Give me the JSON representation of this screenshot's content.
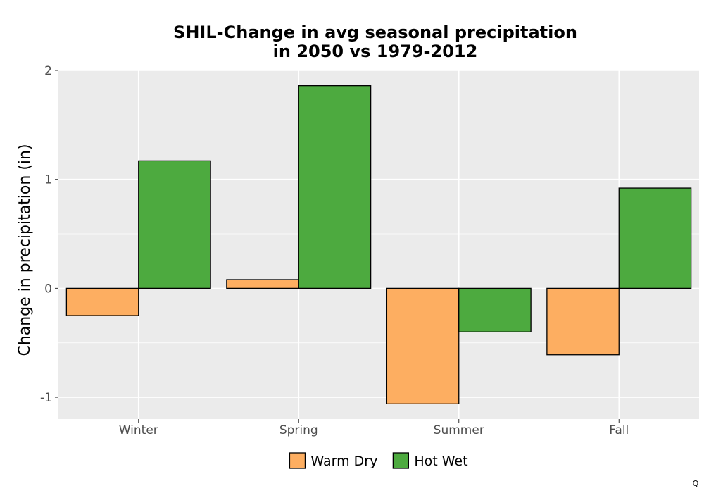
{
  "chart_data": {
    "type": "bar",
    "title_lines": [
      "SHIL-Change in avg seasonal precipitation",
      "in 2050 vs 1979-2012"
    ],
    "xlabel": "",
    "ylabel": "Change in precipitation (in)",
    "categories": [
      "Winter",
      "Spring",
      "Summer",
      "Fall"
    ],
    "series": [
      {
        "name": "Warm Dry",
        "color": "#fdae61",
        "values": [
          -0.25,
          0.08,
          -1.06,
          -0.61
        ]
      },
      {
        "name": "Hot Wet",
        "color": "#4daa3f",
        "values": [
          1.17,
          1.86,
          -0.4,
          0.92
        ]
      }
    ],
    "ylim": [
      -1.2,
      2.0
    ],
    "yticks": [
      -1,
      0,
      1,
      2
    ],
    "ytick_labels": [
      "-1",
      "0",
      "1",
      "2"
    ],
    "grid": true,
    "legend_position": "bottom"
  },
  "corner_note": "Q"
}
